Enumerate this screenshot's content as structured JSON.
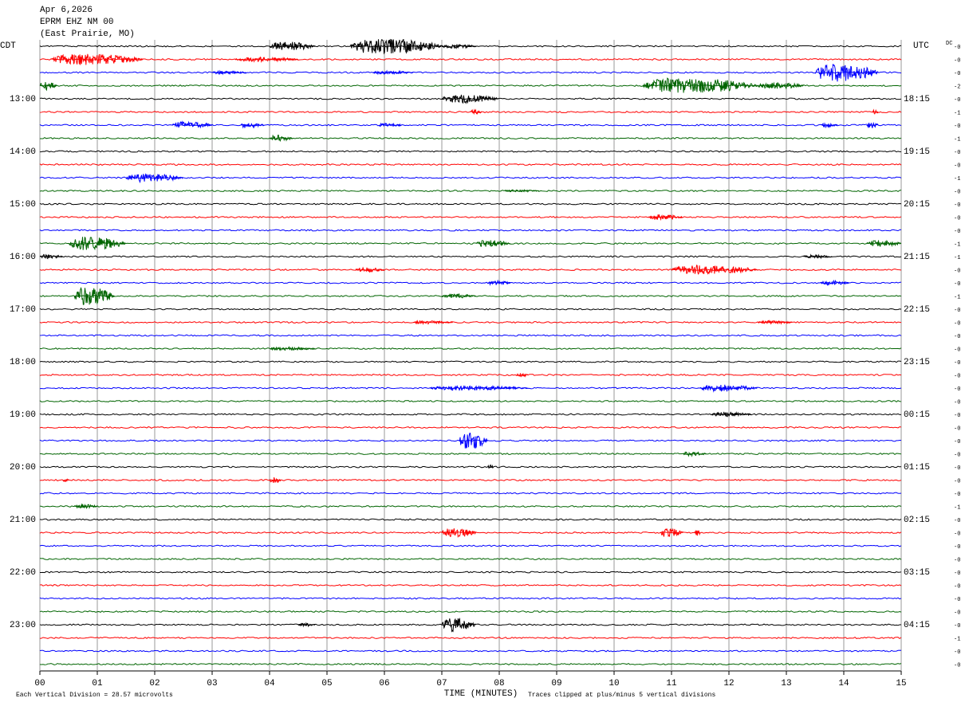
{
  "chart_data": {
    "type": "helicorder",
    "title_lines": [
      "Apr 6,2026",
      "EPRM EHZ NM 00",
      "(East Prairie, MO)"
    ],
    "left_zone": "CDT",
    "right_zone": "UTC",
    "dc_header": "DC",
    "xlabel": "TIME (MINUTES)",
    "footer_left": "Each Vertical Division =   28.57 microvolts",
    "footer_right": "Traces clipped at plus/minus 5 vertical divisions",
    "xlim": [
      0,
      15
    ],
    "xticks": [
      {
        "value": 0,
        "label": "00"
      },
      {
        "value": 1,
        "label": "01"
      },
      {
        "value": 2,
        "label": "02"
      },
      {
        "value": 3,
        "label": "03"
      },
      {
        "value": 4,
        "label": "04"
      },
      {
        "value": 5,
        "label": "05"
      },
      {
        "value": 6,
        "label": "06"
      },
      {
        "value": 7,
        "label": "07"
      },
      {
        "value": 8,
        "label": "08"
      },
      {
        "value": 9,
        "label": "09"
      },
      {
        "value": 10,
        "label": "10"
      },
      {
        "value": 11,
        "label": "11"
      },
      {
        "value": 12,
        "label": "12"
      },
      {
        "value": 13,
        "label": "13"
      },
      {
        "value": 14,
        "label": "14"
      },
      {
        "value": 15,
        "label": "15"
      }
    ],
    "grid": true,
    "trace_colors": [
      "#000000",
      "#ff0000",
      "#0000ff",
      "#006400"
    ],
    "left_row_labels": [
      "13:00",
      "14:00",
      "15:00",
      "16:00",
      "17:00",
      "18:00",
      "19:00",
      "20:00",
      "21:00",
      "22:00",
      "23:00"
    ],
    "right_row_labels": [
      "18:15",
      "19:15",
      "20:15",
      "21:15",
      "22:15",
      "23:15",
      "00:15",
      "01:15",
      "02:15",
      "03:15",
      "04:15"
    ],
    "dc_offsets": [
      "-0",
      "-0",
      "-0",
      "-2",
      "-0",
      "-1",
      "-0",
      "-1",
      "-0",
      "-0",
      "-1",
      "-0",
      "-0",
      "-0",
      "-0",
      "-1",
      "-1",
      "-0",
      "-0",
      "-1",
      "-0",
      "-0",
      "-0",
      "-0",
      "-0",
      "-0",
      "-0",
      "-0",
      "-0",
      "-0",
      "-0",
      "-0",
      "-0",
      "-0",
      "-0",
      "-1",
      "-0",
      "-0",
      "-0",
      "-0",
      "-0",
      "-0",
      "-0",
      "-0",
      "-0",
      "-1",
      "-0",
      "-0"
    ],
    "events": [
      {
        "trace": 0,
        "start": 4.0,
        "end": 4.8,
        "amplitude": 4
      },
      {
        "trace": 0,
        "start": 5.4,
        "end": 7.0,
        "amplitude": 7
      },
      {
        "trace": 0,
        "start": 7.0,
        "end": 7.6,
        "amplitude": 2
      },
      {
        "trace": 1,
        "start": 0.2,
        "end": 1.8,
        "amplitude": 5
      },
      {
        "trace": 1,
        "start": 3.4,
        "end": 4.5,
        "amplitude": 2
      },
      {
        "trace": 2,
        "start": 3.0,
        "end": 3.6,
        "amplitude": 1.5
      },
      {
        "trace": 2,
        "start": 5.8,
        "end": 6.5,
        "amplitude": 1.5
      },
      {
        "trace": 2,
        "start": 13.5,
        "end": 14.6,
        "amplitude": 8
      },
      {
        "trace": 3,
        "start": 0.0,
        "end": 0.3,
        "amplitude": 4
      },
      {
        "trace": 3,
        "start": 10.5,
        "end": 12.5,
        "amplitude": 7
      },
      {
        "trace": 3,
        "start": 12.5,
        "end": 13.3,
        "amplitude": 3
      },
      {
        "trace": 4,
        "start": 7.0,
        "end": 8.0,
        "amplitude": 4
      },
      {
        "trace": 5,
        "start": 7.5,
        "end": 7.7,
        "amplitude": 2
      },
      {
        "trace": 5,
        "start": 14.5,
        "end": 14.6,
        "amplitude": 2
      },
      {
        "trace": 6,
        "start": 2.3,
        "end": 3.0,
        "amplitude": 3
      },
      {
        "trace": 6,
        "start": 3.5,
        "end": 3.9,
        "amplitude": 3
      },
      {
        "trace": 6,
        "start": 5.9,
        "end": 6.3,
        "amplitude": 2
      },
      {
        "trace": 6,
        "start": 13.6,
        "end": 13.9,
        "amplitude": 2
      },
      {
        "trace": 6,
        "start": 14.4,
        "end": 14.6,
        "amplitude": 3
      },
      {
        "trace": 7,
        "start": 4.0,
        "end": 4.4,
        "amplitude": 3
      },
      {
        "trace": 10,
        "start": 1.5,
        "end": 2.5,
        "amplitude": 4
      },
      {
        "trace": 11,
        "start": 8.1,
        "end": 8.7,
        "amplitude": 1
      },
      {
        "trace": 13,
        "start": 10.6,
        "end": 11.2,
        "amplitude": 2.5
      },
      {
        "trace": 15,
        "start": 0.5,
        "end": 1.5,
        "amplitude": 6
      },
      {
        "trace": 15,
        "start": 7.6,
        "end": 8.2,
        "amplitude": 3
      },
      {
        "trace": 15,
        "start": 14.4,
        "end": 15.0,
        "amplitude": 3
      },
      {
        "trace": 16,
        "start": 0.0,
        "end": 0.4,
        "amplitude": 2
      },
      {
        "trace": 16,
        "start": 13.3,
        "end": 13.8,
        "amplitude": 1.5
      },
      {
        "trace": 17,
        "start": 5.5,
        "end": 6.0,
        "amplitude": 2
      },
      {
        "trace": 17,
        "start": 11.0,
        "end": 12.5,
        "amplitude": 4
      },
      {
        "trace": 18,
        "start": 7.8,
        "end": 8.2,
        "amplitude": 2
      },
      {
        "trace": 18,
        "start": 13.6,
        "end": 14.1,
        "amplitude": 2
      },
      {
        "trace": 19,
        "start": 0.6,
        "end": 1.3,
        "amplitude": 8
      },
      {
        "trace": 19,
        "start": 7.0,
        "end": 7.6,
        "amplitude": 2
      },
      {
        "trace": 21,
        "start": 6.5,
        "end": 7.2,
        "amplitude": 1.5
      },
      {
        "trace": 21,
        "start": 12.5,
        "end": 13.1,
        "amplitude": 1.5
      },
      {
        "trace": 23,
        "start": 4.0,
        "end": 4.8,
        "amplitude": 1.5
      },
      {
        "trace": 25,
        "start": 8.3,
        "end": 8.5,
        "amplitude": 2
      },
      {
        "trace": 26,
        "start": 6.8,
        "end": 8.5,
        "amplitude": 2
      },
      {
        "trace": 26,
        "start": 11.5,
        "end": 12.5,
        "amplitude": 3
      },
      {
        "trace": 28,
        "start": 11.7,
        "end": 12.4,
        "amplitude": 2
      },
      {
        "trace": 30,
        "start": 7.3,
        "end": 7.8,
        "amplitude": 8
      },
      {
        "trace": 31,
        "start": 11.2,
        "end": 11.6,
        "amplitude": 2
      },
      {
        "trace": 32,
        "start": 7.8,
        "end": 7.9,
        "amplitude": 2
      },
      {
        "trace": 33,
        "start": 0.4,
        "end": 0.5,
        "amplitude": 1.5
      },
      {
        "trace": 33,
        "start": 4.0,
        "end": 4.2,
        "amplitude": 3
      },
      {
        "trace": 35,
        "start": 0.6,
        "end": 1.0,
        "amplitude": 2
      },
      {
        "trace": 37,
        "start": 7.0,
        "end": 7.6,
        "amplitude": 4
      },
      {
        "trace": 37,
        "start": 10.8,
        "end": 11.2,
        "amplitude": 4
      },
      {
        "trace": 37,
        "start": 11.4,
        "end": 11.5,
        "amplitude": 4
      },
      {
        "trace": 44,
        "start": 4.5,
        "end": 4.8,
        "amplitude": 1.5
      },
      {
        "trace": 44,
        "start": 7.0,
        "end": 7.6,
        "amplitude": 6
      }
    ]
  }
}
